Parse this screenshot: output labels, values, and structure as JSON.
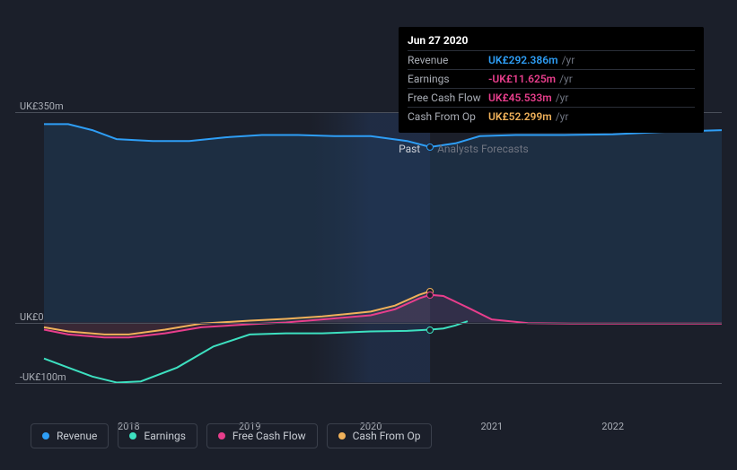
{
  "chart": {
    "type": "line",
    "background_color": "#1b1f2a",
    "grid_color": "#4a4f5a",
    "y_axis": {
      "min": -150,
      "max": 350,
      "ticks": [
        {
          "value": 350,
          "label": "UK£350m"
        },
        {
          "value": 0,
          "label": "UK£0"
        },
        {
          "value": -100,
          "label": "-UK£100m"
        }
      ]
    },
    "x_axis": {
      "min": 2017.3,
      "max": 2022.9,
      "ticks": [
        {
          "value": 2018,
          "label": "2018"
        },
        {
          "value": 2019,
          "label": "2019"
        },
        {
          "value": 2020,
          "label": "2020"
        },
        {
          "value": 2021,
          "label": "2021"
        },
        {
          "value": 2022,
          "label": "2022"
        }
      ]
    },
    "division": {
      "x": 2020.49,
      "past_label": "Past",
      "forecast_label": "Analysts Forecasts"
    },
    "past_shade_start": 2019.5,
    "series": {
      "revenue": {
        "name": "Revenue",
        "color": "#2e9ef6",
        "fill_opacity": 0.12,
        "data": [
          {
            "x": 2017.3,
            "y": 330
          },
          {
            "x": 2017.5,
            "y": 330
          },
          {
            "x": 2017.7,
            "y": 320
          },
          {
            "x": 2017.9,
            "y": 305
          },
          {
            "x": 2018.2,
            "y": 302
          },
          {
            "x": 2018.5,
            "y": 302
          },
          {
            "x": 2018.8,
            "y": 308
          },
          {
            "x": 2019.1,
            "y": 312
          },
          {
            "x": 2019.4,
            "y": 312
          },
          {
            "x": 2019.7,
            "y": 310
          },
          {
            "x": 2020.0,
            "y": 310
          },
          {
            "x": 2020.3,
            "y": 302
          },
          {
            "x": 2020.49,
            "y": 292
          },
          {
            "x": 2020.7,
            "y": 298
          },
          {
            "x": 2020.9,
            "y": 310
          },
          {
            "x": 2021.2,
            "y": 312
          },
          {
            "x": 2021.6,
            "y": 312
          },
          {
            "x": 2022.0,
            "y": 313
          },
          {
            "x": 2022.4,
            "y": 317
          },
          {
            "x": 2022.9,
            "y": 320
          }
        ]
      },
      "earnings": {
        "name": "Earnings",
        "color": "#3de0c0",
        "fill_opacity": 0,
        "data": [
          {
            "x": 2017.3,
            "y": -60
          },
          {
            "x": 2017.5,
            "y": -75
          },
          {
            "x": 2017.7,
            "y": -90
          },
          {
            "x": 2017.9,
            "y": -100
          },
          {
            "x": 2018.1,
            "y": -98
          },
          {
            "x": 2018.4,
            "y": -75
          },
          {
            "x": 2018.7,
            "y": -40
          },
          {
            "x": 2019.0,
            "y": -20
          },
          {
            "x": 2019.3,
            "y": -18
          },
          {
            "x": 2019.6,
            "y": -18
          },
          {
            "x": 2020.0,
            "y": -15
          },
          {
            "x": 2020.3,
            "y": -14
          },
          {
            "x": 2020.49,
            "y": -12
          },
          {
            "x": 2020.6,
            "y": -10
          },
          {
            "x": 2020.7,
            "y": -5
          },
          {
            "x": 2020.8,
            "y": 2
          }
        ]
      },
      "fcf": {
        "name": "Free Cash Flow",
        "color": "#e83e8c",
        "fill_opacity": 0.1,
        "data": [
          {
            "x": 2017.3,
            "y": -12
          },
          {
            "x": 2017.5,
            "y": -20
          },
          {
            "x": 2017.8,
            "y": -25
          },
          {
            "x": 2018.0,
            "y": -25
          },
          {
            "x": 2018.3,
            "y": -18
          },
          {
            "x": 2018.6,
            "y": -8
          },
          {
            "x": 2019.0,
            "y": -3
          },
          {
            "x": 2019.3,
            "y": 0
          },
          {
            "x": 2019.6,
            "y": 5
          },
          {
            "x": 2020.0,
            "y": 12
          },
          {
            "x": 2020.2,
            "y": 22
          },
          {
            "x": 2020.4,
            "y": 40
          },
          {
            "x": 2020.49,
            "y": 46
          },
          {
            "x": 2020.6,
            "y": 44
          },
          {
            "x": 2020.8,
            "y": 25
          },
          {
            "x": 2021.0,
            "y": 5
          },
          {
            "x": 2021.3,
            "y": -1
          },
          {
            "x": 2021.7,
            "y": -2
          },
          {
            "x": 2022.2,
            "y": -2
          },
          {
            "x": 2022.9,
            "y": -2
          }
        ]
      },
      "cfo": {
        "name": "Cash From Op",
        "color": "#f0b15a",
        "fill_opacity": 0.05,
        "data": [
          {
            "x": 2017.3,
            "y": -8
          },
          {
            "x": 2017.5,
            "y": -15
          },
          {
            "x": 2017.8,
            "y": -20
          },
          {
            "x": 2018.0,
            "y": -20
          },
          {
            "x": 2018.3,
            "y": -12
          },
          {
            "x": 2018.6,
            "y": -2
          },
          {
            "x": 2019.0,
            "y": 3
          },
          {
            "x": 2019.3,
            "y": 6
          },
          {
            "x": 2019.6,
            "y": 10
          },
          {
            "x": 2020.0,
            "y": 18
          },
          {
            "x": 2020.2,
            "y": 28
          },
          {
            "x": 2020.4,
            "y": 46
          },
          {
            "x": 2020.49,
            "y": 52
          }
        ]
      }
    },
    "tooltip": {
      "title": "Jun 27 2020",
      "rows": [
        {
          "label": "Revenue",
          "value": "UK£292.386m",
          "unit": "/yr",
          "color": "#2e9ef6"
        },
        {
          "label": "Earnings",
          "value": "-UK£11.625m",
          "unit": "/yr",
          "color": "#e83e8c"
        },
        {
          "label": "Free Cash Flow",
          "value": "UK£45.533m",
          "unit": "/yr",
          "color": "#e83e8c"
        },
        {
          "label": "Cash From Op",
          "value": "UK£52.299m",
          "unit": "/yr",
          "color": "#f0b15a"
        }
      ]
    },
    "markers": [
      {
        "series": "revenue",
        "x": 2020.49,
        "y": 292
      },
      {
        "series": "cfo",
        "x": 2020.49,
        "y": 52
      },
      {
        "series": "fcf",
        "x": 2020.49,
        "y": 46
      },
      {
        "series": "earnings",
        "x": 2020.49,
        "y": -12
      }
    ]
  },
  "legend": [
    {
      "key": "revenue",
      "label": "Revenue",
      "color": "#2e9ef6"
    },
    {
      "key": "earnings",
      "label": "Earnings",
      "color": "#3de0c0"
    },
    {
      "key": "fcf",
      "label": "Free Cash Flow",
      "color": "#e83e8c"
    },
    {
      "key": "cfo",
      "label": "Cash From Op",
      "color": "#f0b15a"
    }
  ]
}
